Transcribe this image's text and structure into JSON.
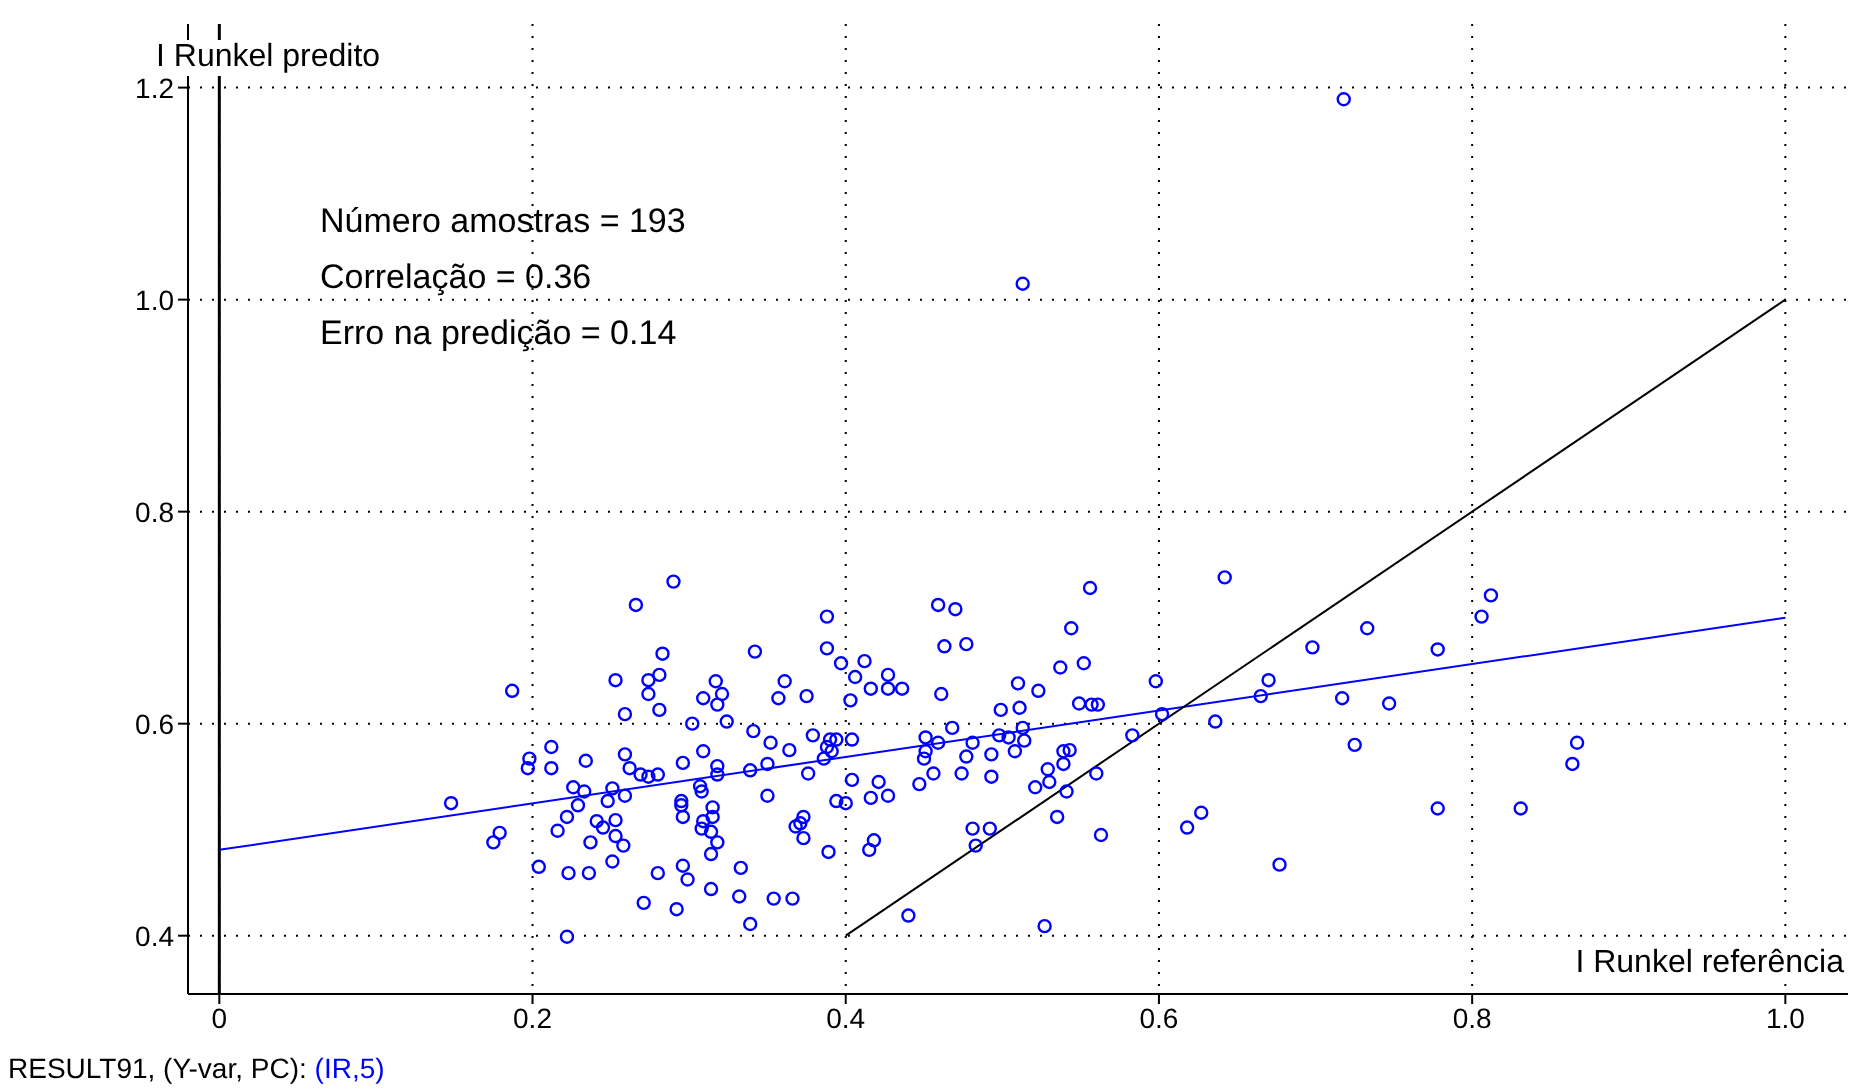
{
  "chart_data": {
    "type": "scatter",
    "xlabel": "I Runkel referência",
    "ylabel": "I Runkel predito",
    "annotations": [
      "Número amostras = 193",
      "Correlação = 0.36",
      "Erro na predição = 0.14",
      "RESULT91, (Y-var, PC):",
      "(IR,5)"
    ],
    "xlim": [
      -0.02,
      1.04
    ],
    "ylim": [
      0.345,
      1.26
    ],
    "xticks": [
      0,
      0.2,
      0.4,
      0.6,
      0.8,
      {
        "value": 1.0,
        "label": "1.0"
      }
    ],
    "yticks": [
      0.4,
      0.6,
      0.8,
      {
        "value": 1.0,
        "label": "1.0"
      },
      1.2
    ],
    "grid": true,
    "ref_lines": [
      {
        "axis": "x",
        "value": 0,
        "label": null,
        "color": "#000000"
      }
    ],
    "series": [
      {
        "marker": "circle",
        "color": "#0000ff",
        "x": [
          0.187,
          0.148,
          0.179,
          0.175,
          0.212,
          0.198,
          0.197,
          0.212,
          0.234,
          0.226,
          0.233,
          0.229,
          0.222,
          0.216,
          0.204,
          0.223,
          0.236,
          0.222,
          0.237,
          0.241,
          0.245,
          0.251,
          0.253,
          0.248,
          0.251,
          0.253,
          0.253,
          0.29,
          0.266,
          0.388,
          0.283,
          0.342,
          0.388,
          0.397,
          0.412,
          0.274,
          0.281,
          0.274,
          0.317,
          0.321,
          0.309,
          0.318,
          0.281,
          0.361,
          0.357,
          0.375,
          0.406,
          0.427,
          0.416,
          0.427,
          0.403,
          0.259,
          0.302,
          0.324,
          0.341,
          0.352,
          0.364,
          0.379,
          0.39,
          0.394,
          0.404,
          0.388,
          0.391,
          0.386,
          0.259,
          0.262,
          0.269,
          0.274,
          0.28,
          0.296,
          0.309,
          0.318,
          0.318,
          0.307,
          0.308,
          0.339,
          0.35,
          0.376,
          0.404,
          0.421,
          0.259,
          0.295,
          0.295,
          0.35,
          0.394,
          0.4,
          0.416,
          0.427,
          0.315,
          0.296,
          0.309,
          0.315,
          0.373,
          0.371,
          0.368,
          0.308,
          0.314,
          0.373,
          0.418,
          0.258,
          0.318,
          0.314,
          0.389,
          0.415,
          0.296,
          0.333,
          0.28,
          0.299,
          0.314,
          0.332,
          0.354,
          0.366,
          0.271,
          0.292,
          0.339,
          0.556,
          0.459,
          0.47,
          0.544,
          0.463,
          0.477,
          0.537,
          0.552,
          0.436,
          0.461,
          0.51,
          0.523,
          0.499,
          0.511,
          0.549,
          0.557,
          0.561,
          0.598,
          0.602,
          0.468,
          0.513,
          0.451,
          0.459,
          0.481,
          0.498,
          0.504,
          0.514,
          0.583,
          0.451,
          0.45,
          0.477,
          0.493,
          0.508,
          0.539,
          0.543,
          0.539,
          0.456,
          0.474,
          0.493,
          0.529,
          0.56,
          0.53,
          0.521,
          0.541,
          0.447,
          0.535,
          0.481,
          0.492,
          0.483,
          0.563,
          0.44,
          0.527,
          0.642,
          0.812,
          0.806,
          0.733,
          0.698,
          0.778,
          0.67,
          0.665,
          0.717,
          0.747,
          0.636,
          0.725,
          0.867,
          0.864,
          0.627,
          0.618,
          0.778,
          0.831,
          0.677,
          0.718,
          0.513
        ],
        "values": [
          0.631,
          0.525,
          0.497,
          0.488,
          0.578,
          0.567,
          0.558,
          0.558,
          0.565,
          0.54,
          0.536,
          0.523,
          0.512,
          0.499,
          0.465,
          0.459,
          0.459,
          0.399,
          0.488,
          0.508,
          0.502,
          0.47,
          0.641,
          0.527,
          0.539,
          0.509,
          0.494,
          0.734,
          0.712,
          0.701,
          0.666,
          0.668,
          0.671,
          0.657,
          0.659,
          0.641,
          0.646,
          0.628,
          0.64,
          0.628,
          0.624,
          0.618,
          0.613,
          0.64,
          0.624,
          0.626,
          0.644,
          0.646,
          0.633,
          0.633,
          0.622,
          0.609,
          0.6,
          0.602,
          0.593,
          0.582,
          0.575,
          0.589,
          0.585,
          0.585,
          0.585,
          0.578,
          0.574,
          0.567,
          0.571,
          0.558,
          0.552,
          0.55,
          0.552,
          0.563,
          0.574,
          0.56,
          0.552,
          0.541,
          0.536,
          0.556,
          0.562,
          0.553,
          0.547,
          0.545,
          0.532,
          0.527,
          0.523,
          0.532,
          0.527,
          0.525,
          0.53,
          0.532,
          0.521,
          0.512,
          0.508,
          0.512,
          0.512,
          0.506,
          0.503,
          0.501,
          0.498,
          0.492,
          0.49,
          0.485,
          0.488,
          0.477,
          0.479,
          0.481,
          0.466,
          0.464,
          0.459,
          0.453,
          0.444,
          0.437,
          0.435,
          0.435,
          0.431,
          0.425,
          0.411,
          0.728,
          0.712,
          0.708,
          0.69,
          0.673,
          0.675,
          0.653,
          0.657,
          0.633,
          0.628,
          0.638,
          0.631,
          0.613,
          0.615,
          0.619,
          0.618,
          0.618,
          0.64,
          0.609,
          0.596,
          0.596,
          0.587,
          0.582,
          0.582,
          0.589,
          0.587,
          0.584,
          0.589,
          0.574,
          0.567,
          0.569,
          0.571,
          0.574,
          0.574,
          0.575,
          0.562,
          0.553,
          0.553,
          0.55,
          0.557,
          0.553,
          0.545,
          0.54,
          0.536,
          0.543,
          0.512,
          0.501,
          0.501,
          0.485,
          0.495,
          0.419,
          0.409,
          0.738,
          0.721,
          0.701,
          0.69,
          0.672,
          0.67,
          0.641,
          0.626,
          0.624,
          0.619,
          0.602,
          0.58,
          0.582,
          0.562,
          0.516,
          0.502,
          0.52,
          0.52,
          0.467,
          1.189,
          1.015
        ]
      },
      {
        "type": "line",
        "color": "#0000ff",
        "x": [
          0,
          1.0
        ],
        "values": [
          0.481,
          0.7
        ]
      },
      {
        "type": "line",
        "color": "#000000",
        "x": [
          0.4,
          1.0
        ],
        "values": [
          0.4,
          1.0
        ]
      }
    ]
  }
}
